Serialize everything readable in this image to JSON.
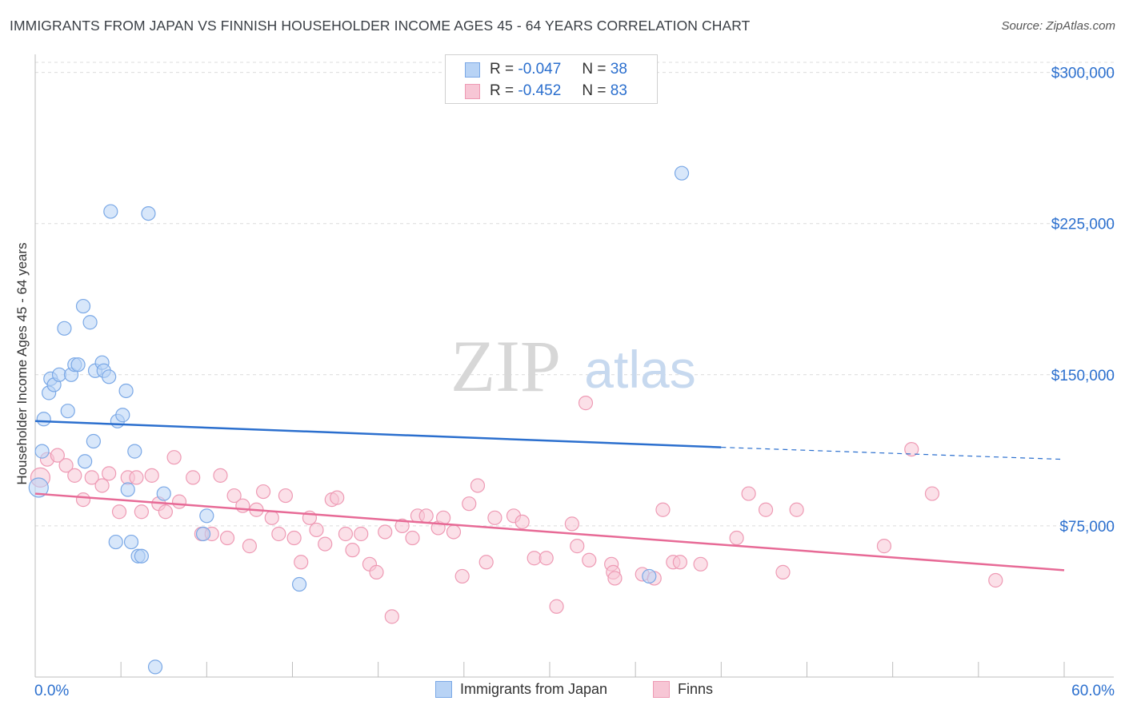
{
  "title": "IMMIGRANTS FROM JAPAN VS FINNISH HOUSEHOLDER INCOME AGES 45 - 64 YEARS CORRELATION CHART",
  "source": "Source: ZipAtlas.com",
  "watermark": {
    "zip": "ZIP",
    "atlas": "atlas"
  },
  "legend_top": {
    "r_label": "R =",
    "n_label": "N =",
    "rows": [
      {
        "r": "-0.047",
        "n": "38"
      },
      {
        "r": "-0.452",
        "n": "83"
      }
    ]
  },
  "colors": {
    "japan_fill": "#b8d3f5",
    "japan_stroke": "#7aa8e6",
    "japan_line": "#2b6fce",
    "finns_fill": "#f7c6d5",
    "finns_stroke": "#ee9ab4",
    "finns_line": "#e76a96",
    "tick_text": "#2b6fce",
    "grid": "#dcdcdc"
  },
  "chart_data": {
    "type": "scatter",
    "title": "IMMIGRANTS FROM JAPAN VS FINNISH HOUSEHOLDER INCOME AGES 45 - 64 YEARS CORRELATION CHART",
    "xlabel": "",
    "ylabel": "Householder Income Ages 45 - 64 years",
    "xlim": [
      0,
      60
    ],
    "ylim": [
      0,
      305000
    ],
    "x_tick_labels": [
      "0.0%",
      "60.0%"
    ],
    "y_ticks": [
      75000,
      150000,
      225000,
      300000
    ],
    "y_tick_labels": [
      "$75,000",
      "$150,000",
      "$225,000",
      "$300,000"
    ],
    "legend_position": "bottom-center",
    "series": [
      {
        "name": "Immigrants from Japan",
        "r": -0.047,
        "n": 38,
        "trend": {
          "x0": 0,
          "y0": 127000,
          "x1": 40,
          "y1": 114000,
          "x_dash_end": 60,
          "y_dash_end": 108000
        },
        "points": [
          [
            0.2,
            94000
          ],
          [
            0.4,
            112000
          ],
          [
            0.5,
            128000
          ],
          [
            0.8,
            141000
          ],
          [
            0.9,
            148000
          ],
          [
            1.1,
            145000
          ],
          [
            1.4,
            150000
          ],
          [
            1.7,
            173000
          ],
          [
            1.9,
            132000
          ],
          [
            2.1,
            150000
          ],
          [
            2.3,
            155000
          ],
          [
            2.5,
            155000
          ],
          [
            2.8,
            184000
          ],
          [
            2.9,
            107000
          ],
          [
            3.2,
            176000
          ],
          [
            3.4,
            117000
          ],
          [
            3.5,
            152000
          ],
          [
            3.9,
            156000
          ],
          [
            4.0,
            152000
          ],
          [
            4.3,
            149000
          ],
          [
            4.4,
            231000
          ],
          [
            4.8,
            127000
          ],
          [
            5.1,
            130000
          ],
          [
            5.3,
            142000
          ],
          [
            5.4,
            93000
          ],
          [
            5.8,
            112000
          ],
          [
            5.6,
            67000
          ],
          [
            4.7,
            67000
          ],
          [
            6.0,
            60000
          ],
          [
            6.2,
            60000
          ],
          [
            6.6,
            230000
          ],
          [
            7.5,
            91000
          ],
          [
            10.0,
            80000
          ],
          [
            9.8,
            71000
          ],
          [
            15.4,
            46000
          ],
          [
            37.7,
            250000
          ],
          [
            35.8,
            50000
          ],
          [
            7.0,
            5000
          ]
        ]
      },
      {
        "name": "Finns",
        "r": -0.452,
        "n": 83,
        "trend": {
          "x0": 0,
          "y0": 91000,
          "x1": 60,
          "y1": 53000
        },
        "points": [
          [
            0.3,
            99000
          ],
          [
            0.7,
            108000
          ],
          [
            1.3,
            110000
          ],
          [
            1.8,
            105000
          ],
          [
            2.3,
            100000
          ],
          [
            2.8,
            88000
          ],
          [
            3.3,
            99000
          ],
          [
            3.9,
            95000
          ],
          [
            4.3,
            101000
          ],
          [
            4.9,
            82000
          ],
          [
            5.4,
            99000
          ],
          [
            5.9,
            99000
          ],
          [
            6.2,
            82000
          ],
          [
            6.8,
            100000
          ],
          [
            7.2,
            86000
          ],
          [
            7.6,
            82000
          ],
          [
            8.1,
            109000
          ],
          [
            8.4,
            87000
          ],
          [
            9.2,
            99000
          ],
          [
            9.7,
            71000
          ],
          [
            10.3,
            71000
          ],
          [
            10.8,
            100000
          ],
          [
            11.2,
            69000
          ],
          [
            11.6,
            90000
          ],
          [
            12.1,
            85000
          ],
          [
            12.5,
            65000
          ],
          [
            12.9,
            83000
          ],
          [
            13.3,
            92000
          ],
          [
            13.8,
            79000
          ],
          [
            14.2,
            71000
          ],
          [
            14.6,
            90000
          ],
          [
            15.1,
            69000
          ],
          [
            15.5,
            57000
          ],
          [
            16.0,
            79000
          ],
          [
            16.4,
            73000
          ],
          [
            16.9,
            66000
          ],
          [
            17.3,
            88000
          ],
          [
            17.6,
            89000
          ],
          [
            18.1,
            71000
          ],
          [
            18.5,
            63000
          ],
          [
            19.0,
            71000
          ],
          [
            19.5,
            56000
          ],
          [
            19.9,
            52000
          ],
          [
            20.4,
            72000
          ],
          [
            20.8,
            30000
          ],
          [
            21.4,
            75000
          ],
          [
            22.0,
            69000
          ],
          [
            22.3,
            80000
          ],
          [
            22.8,
            80000
          ],
          [
            23.5,
            74000
          ],
          [
            23.8,
            79000
          ],
          [
            24.4,
            72000
          ],
          [
            24.9,
            50000
          ],
          [
            25.3,
            86000
          ],
          [
            25.8,
            95000
          ],
          [
            26.3,
            57000
          ],
          [
            26.8,
            79000
          ],
          [
            27.9,
            80000
          ],
          [
            28.4,
            77000
          ],
          [
            29.1,
            59000
          ],
          [
            29.8,
            59000
          ],
          [
            30.4,
            35000
          ],
          [
            31.3,
            76000
          ],
          [
            31.6,
            65000
          ],
          [
            32.3,
            58000
          ],
          [
            33.6,
            56000
          ],
          [
            33.7,
            52000
          ],
          [
            33.8,
            49000
          ],
          [
            35.4,
            51000
          ],
          [
            36.1,
            49000
          ],
          [
            36.6,
            83000
          ],
          [
            37.2,
            57000
          ],
          [
            37.6,
            57000
          ],
          [
            38.8,
            56000
          ],
          [
            40.9,
            69000
          ],
          [
            41.6,
            91000
          ],
          [
            42.6,
            83000
          ],
          [
            43.6,
            52000
          ],
          [
            44.4,
            83000
          ],
          [
            49.5,
            65000
          ],
          [
            51.1,
            113000
          ],
          [
            52.3,
            91000
          ],
          [
            56.0,
            48000
          ],
          [
            32.1,
            136000
          ]
        ]
      }
    ]
  }
}
